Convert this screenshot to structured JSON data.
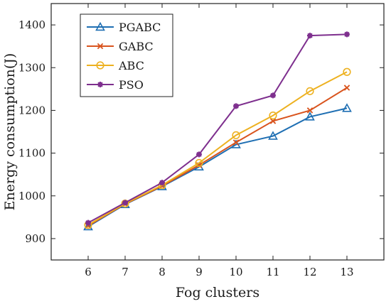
{
  "chart_data": {
    "type": "line",
    "title": "",
    "xlabel": "Fog clusters",
    "ylabel": "Energy consumption(J)",
    "x": [
      6,
      7,
      8,
      9,
      10,
      11,
      12,
      13
    ],
    "xlim": [
      5,
      14
    ],
    "ylim": [
      850,
      1450
    ],
    "yticks": [
      900,
      1000,
      1100,
      1200,
      1300,
      1400
    ],
    "grid": false,
    "legend_position": "top-left",
    "series": [
      {
        "name": "PGABC",
        "color": "#1f6fb3",
        "marker": "triangle",
        "values": [
          928,
          980,
          1022,
          1068,
          1120,
          1140,
          1185,
          1205
        ]
      },
      {
        "name": "GABC",
        "color": "#d9541e",
        "marker": "x",
        "values": [
          930,
          981,
          1023,
          1072,
          1125,
          1175,
          1200,
          1253
        ]
      },
      {
        "name": "ABC",
        "color": "#edb120",
        "marker": "circle",
        "values": [
          932,
          982,
          1025,
          1077,
          1142,
          1188,
          1245,
          1290
        ]
      },
      {
        "name": "PSO",
        "color": "#7e2f8e",
        "marker": "star",
        "values": [
          937,
          984,
          1031,
          1097,
          1210,
          1235,
          1375,
          1378
        ]
      }
    ]
  }
}
